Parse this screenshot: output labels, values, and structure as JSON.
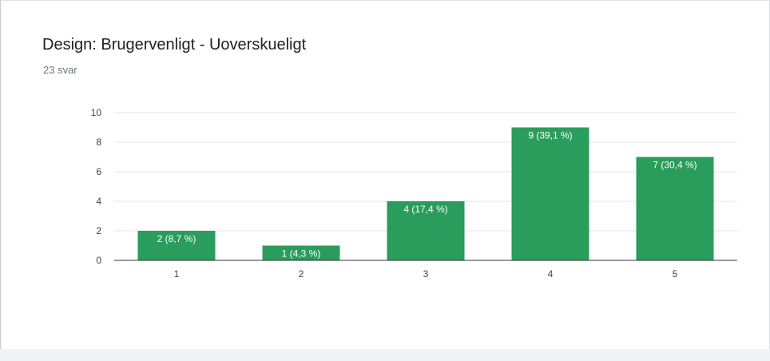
{
  "chart_data": {
    "type": "bar",
    "title": "Design: Brugervenligt - Uoverskueligt",
    "subtitle": "23 svar",
    "categories": [
      "1",
      "2",
      "3",
      "4",
      "5"
    ],
    "values": [
      2,
      1,
      4,
      9,
      7
    ],
    "data_labels": [
      "2 (8,7 %)",
      "1 (4,3 %)",
      "4 (17,4 %)",
      "9 (39,1 %)",
      "7 (30,4 %)"
    ],
    "ylim": [
      0,
      10
    ],
    "yticks": [
      0,
      2,
      4,
      6,
      8,
      10
    ],
    "grid": true,
    "bar_color": "#2a9d5c",
    "xlabel": "",
    "ylabel": ""
  }
}
